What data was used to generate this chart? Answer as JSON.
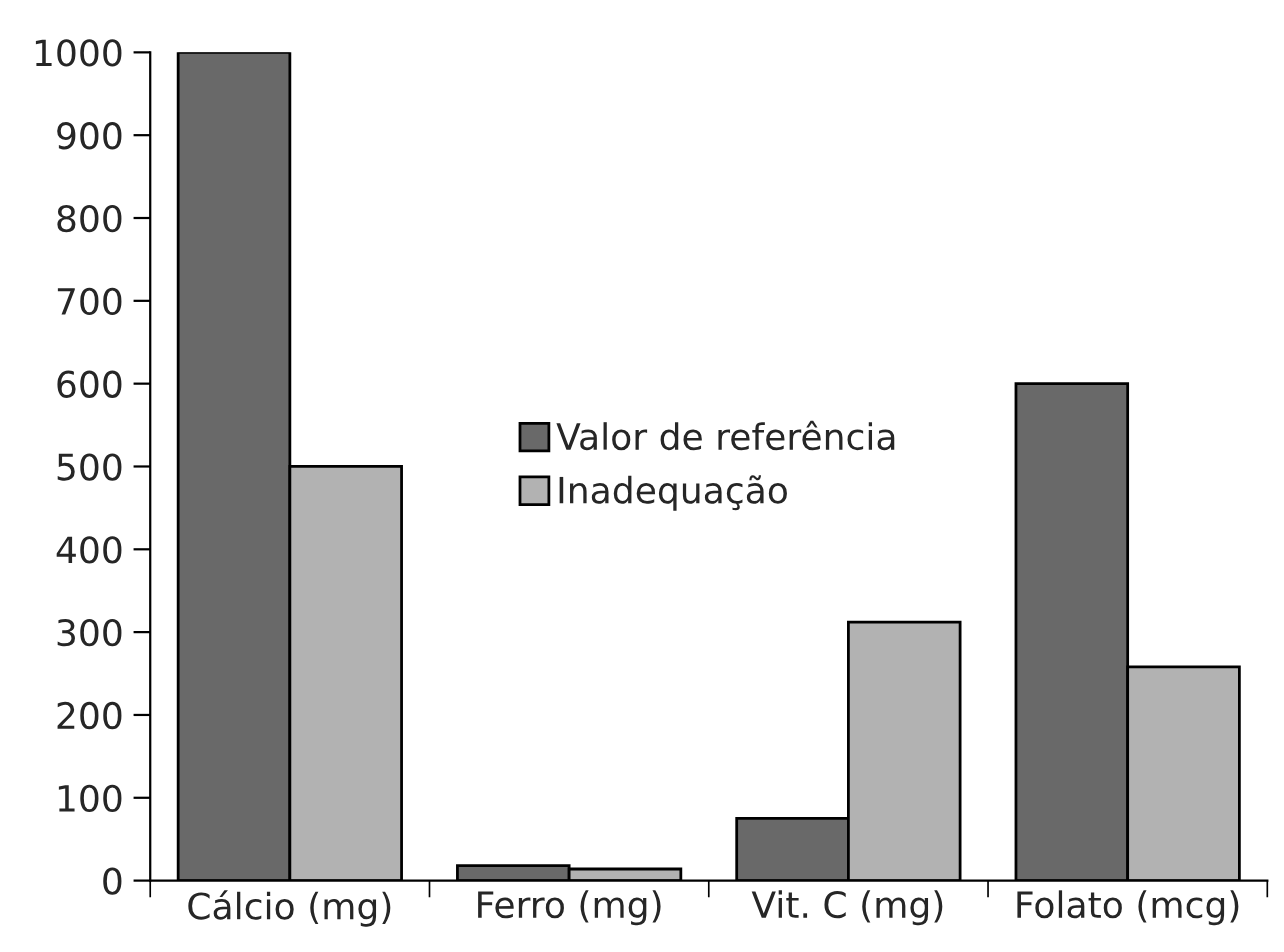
{
  "chart_data": {
    "type": "bar",
    "categories": [
      "Cálcio (mg)",
      "Ferro (mg)",
      "Vit. C (mg)",
      "Folato (mcg)"
    ],
    "series": [
      {
        "name": "Valor de referência",
        "color": "#696969",
        "values": [
          1000,
          18,
          75,
          600
        ]
      },
      {
        "name": "Inadequação",
        "color": "#b2b2b2",
        "values": [
          500,
          14,
          312,
          258
        ]
      }
    ],
    "ylim": [
      0,
      1000
    ],
    "yticks": [
      0,
      100,
      200,
      300,
      400,
      500,
      600,
      700,
      800,
      900,
      1000
    ],
    "grid": false,
    "legend": "center"
  }
}
